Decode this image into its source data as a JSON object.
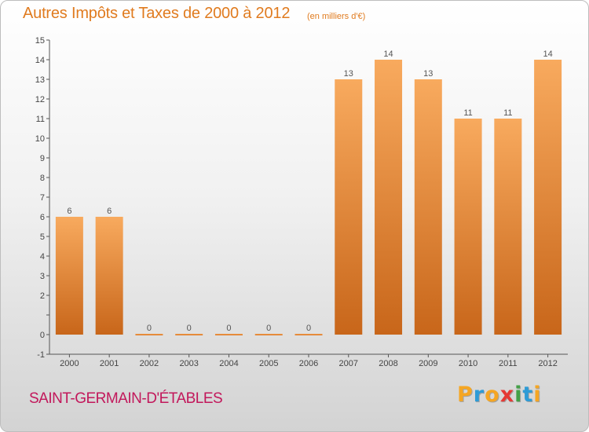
{
  "header": {
    "title": "Autres Impôts et Taxes de 2000 à 2012",
    "unit": "(en milliers d'€)"
  },
  "commune": "SAINT-GERMAIN-D'ÉTABLES",
  "logo": {
    "text": "Proxiti",
    "letters": [
      "P",
      "r",
      "o",
      "x",
      "i",
      "t",
      "i"
    ],
    "colors": [
      "#f5a623",
      "#2e9bd6",
      "#f5a623",
      "#e53935",
      "#43a047",
      "#2e9bd6",
      "#f5a623"
    ]
  },
  "colors": {
    "title": "#e07b1f",
    "commune": "#c2185b",
    "bar_top": "#f8aa5e",
    "bar_bottom": "#c8661a"
  },
  "chart_data": {
    "type": "bar",
    "title": "Autres Impôts et Taxes de 2000 à 2012",
    "subtitle": "(en milliers d'€)",
    "categories": [
      "2000",
      "2001",
      "2002",
      "2003",
      "2004",
      "2005",
      "2006",
      "2007",
      "2008",
      "2009",
      "2010",
      "2011",
      "2012"
    ],
    "values": [
      6,
      6,
      0,
      0,
      0,
      0,
      0,
      13,
      14,
      13,
      11,
      11,
      14
    ],
    "value_labels": [
      "6",
      "6",
      "0",
      "0",
      "0",
      "0",
      "0",
      "13",
      "14",
      "13",
      "11",
      "11",
      "14"
    ],
    "yticks": [
      -1,
      0,
      1,
      2,
      3,
      4,
      5,
      6,
      7,
      8,
      9,
      10,
      11,
      12,
      13,
      14,
      15
    ],
    "ytick_labels": [
      "-1",
      "0",
      "",
      "2",
      "3",
      "4",
      "5",
      "6",
      "7",
      "8",
      "9",
      "10",
      "11",
      "12",
      "13",
      "14",
      "15"
    ],
    "ylim": [
      -1,
      15
    ],
    "xlabel": "",
    "ylabel": "",
    "grid": false,
    "legend": "none"
  }
}
